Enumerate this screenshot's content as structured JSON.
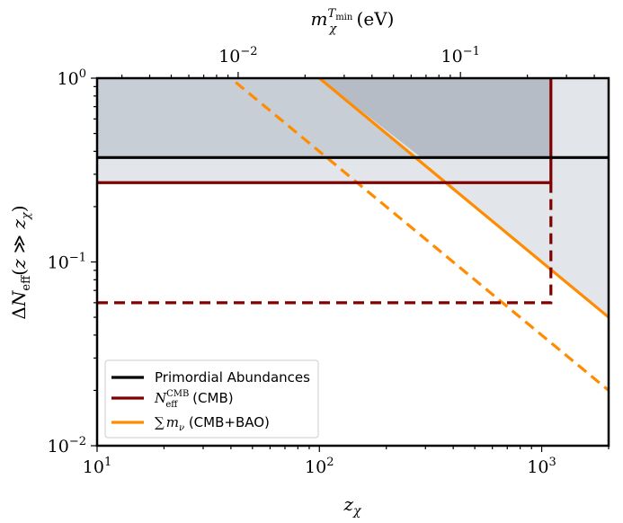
{
  "chart_data": {
    "type": "line",
    "xlabel": "z_χ",
    "ylabel": "ΔN_eff(z ≫ z_χ)",
    "top_xlabel": "m_χ^{T_min} (eV)",
    "xscale": "log",
    "yscale": "log",
    "xlim": [
      10,
      2000
    ],
    "ylim": [
      0.01,
      1
    ],
    "x_ticks": [
      {
        "value": 10,
        "base": "10",
        "exp": "1"
      },
      {
        "value": 100,
        "base": "10",
        "exp": "2"
      },
      {
        "value": 1000,
        "base": "10",
        "exp": "3"
      }
    ],
    "y_ticks": [
      {
        "value": 0.01,
        "base": "10",
        "exp": "−2"
      },
      {
        "value": 0.1,
        "base": "10",
        "exp": "−1"
      },
      {
        "value": 1,
        "base": "10",
        "exp": "0"
      }
    ],
    "top_ticks": [
      {
        "value": 0.01,
        "base": "10",
        "exp": "−2"
      },
      {
        "value": 0.1,
        "base": "10",
        "exp": "−1"
      }
    ],
    "top_axis_scale": 0.000232,
    "series": [
      {
        "name": "Primordial Abundances",
        "color": "#000000",
        "style": "solid",
        "x": [
          10,
          2000
        ],
        "y": [
          0.37,
          0.37
        ]
      },
      {
        "name": "N_eff^CMB (CMB)",
        "color": "#800000",
        "style": "solid",
        "x": [
          10,
          1100,
          1100
        ],
        "y": [
          0.27,
          0.27,
          1
        ]
      },
      {
        "name": "N_eff^CMB (CMB) projected",
        "color": "#800000",
        "style": "dashed",
        "x": [
          10,
          1100,
          1100
        ],
        "y": [
          0.06,
          0.06,
          0.27
        ]
      },
      {
        "name": "∑m_ν (CMB+BAO)",
        "color": "#ff8c00",
        "style": "solid",
        "x": [
          100,
          2000
        ],
        "y": [
          1,
          0.05
        ]
      },
      {
        "name": "∑m_ν (CMB+BAO) projected",
        "color": "#ff8c00",
        "style": "dashed",
        "x": [
          42,
          2000
        ],
        "y": [
          0.95,
          0.02
        ]
      }
    ],
    "regions": [
      {
        "color": "#c8ced6",
        "x": [
          10,
          2000
        ],
        "y_range": [
          0.37,
          1
        ]
      },
      {
        "color": "#e2e5e9",
        "x": [
          10,
          2000
        ],
        "y_range": [
          0.27,
          0.37
        ]
      },
      {
        "color": "#e2e5e9",
        "polygon": [
          [
            100,
            1
          ],
          [
            2000,
            1
          ],
          [
            2000,
            0.05
          ]
        ]
      },
      {
        "color": "#b5bcc5",
        "polygon": [
          [
            100,
            1
          ],
          [
            1100,
            1
          ],
          [
            1100,
            0.37
          ],
          [
            287,
            0.37
          ]
        ]
      }
    ],
    "legend": {
      "position": "lower-left",
      "entries": [
        {
          "label": "Primordial Abundances",
          "color": "#000000"
        },
        {
          "label": "(CMB)",
          "color": "#800000",
          "math": "N_eff^CMB"
        },
        {
          "label": "(CMB+BAO)",
          "color": "#ff8c00",
          "math": "∑m_ν"
        }
      ]
    }
  }
}
